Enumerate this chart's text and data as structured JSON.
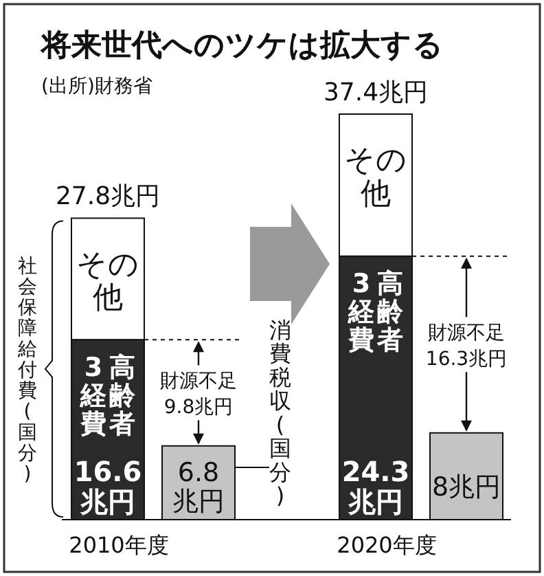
{
  "chart_data": {
    "type": "bar",
    "title": "将来世代へのツケは拡大する",
    "subtitle": "(出所)財務省",
    "categories": [
      "2010年度",
      null,
      "2020年度",
      null
    ],
    "stacked": true,
    "legend": "center",
    "series": [
      {
        "name": "高齢者3経費",
        "color": "#2a2a2a",
        "values": [
          16.6,
          null,
          24.3,
          null
        ],
        "value_labels": [
          "16.6兆円",
          null,
          "24.3兆円",
          null
        ]
      },
      {
        "name": "その他",
        "color": "#ffffff",
        "values": [
          11.2,
          null,
          13.1,
          null
        ]
      },
      {
        "name": "消費税収(国分)",
        "color": "#c4c4c4",
        "values": [
          null,
          6.8,
          null,
          8
        ],
        "value_labels": [
          null,
          "6.8兆円",
          null,
          "8兆円"
        ]
      }
    ],
    "totals": [
      "27.8兆円",
      null,
      "37.4兆円",
      null
    ],
    "annotations": [
      "財源不足",
      "9.8兆円",
      "財源不足",
      "16.3兆円",
      "社会保障給付費(国分)"
    ]
  }
}
